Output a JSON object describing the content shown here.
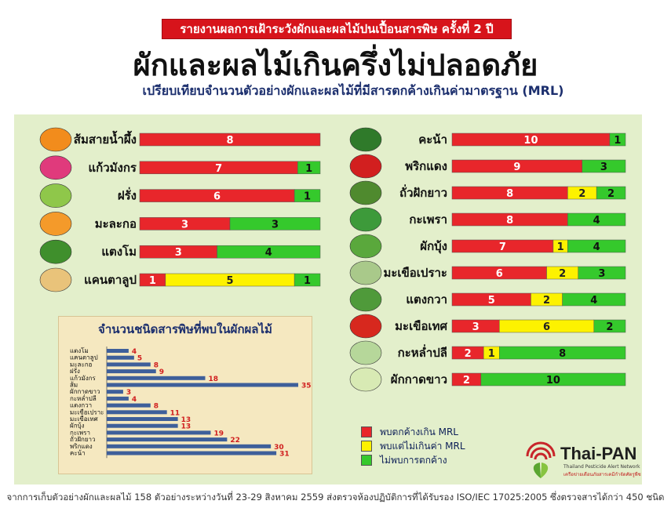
{
  "header": {
    "banner": "รายงานผลการเฝ้าระวังผักและผลไม้ปนเปื้อนสารพิษ ครั้งที่ 2 ปี 2559",
    "title": "ผักและผลไม้เกินครึ่งไม่ปลอดภัย",
    "subtitle": "เปรียบเทียบจำนวนตัวอย่างผักและผลไม้ที่มีสารตกค้างเกินค่ามาตรฐาน (MRL)"
  },
  "colors": {
    "red": "#e8262b",
    "yellow": "#fdf200",
    "green": "#35c92c"
  },
  "legend": {
    "items": [
      {
        "label": "พบตกค้างเกิน MRL",
        "color": "#e8262b"
      },
      {
        "label": "พบแต่ไม่เกินค่า MRL",
        "color": "#fdf200"
      },
      {
        "label": "ไม่พบการตกค้าง",
        "color": "#35c92c"
      }
    ]
  },
  "logo": {
    "name": "Thai-PAN",
    "tagline": "Thailand Pesticide Alert Network",
    "tagline_th": "เครือข่ายเตือนภัยสารเคมีกำจัดศัตรูพืช"
  },
  "footnote": "จากการเก็บตัวอย่างผักและผลไม้ 158 ตัวอย่างระหว่างวันที่ 23-29 สิงหาคม 2559 ส่งตรวจห้องปฏิบัติการที่ได้รับรอง ISO/IEC 17025:2005 ซึ่งตรวจสารได้กว่า 450 ชนิด",
  "chart_data": [
    {
      "type": "bar",
      "orientation": "horizontal",
      "stacked": true,
      "panel": "fruits",
      "categories": [
        "ส้มสายน้ำผึ้ง",
        "แก้วมังกร",
        "ฝรั่ง",
        "มะละกอ",
        "แตงโม",
        "แคนตาลูป"
      ],
      "icons": [
        "orange-icon",
        "dragon-fruit-icon",
        "guava-icon",
        "papaya-icon",
        "watermelon-icon",
        "cantaloupe-icon"
      ],
      "series": [
        {
          "name": "พบตกค้างเกิน MRL",
          "color": "#e8262b",
          "values": [
            8,
            7,
            6,
            3,
            3,
            1
          ]
        },
        {
          "name": "พบแต่ไม่เกินค่า MRL",
          "color": "#fdf200",
          "values": [
            0,
            0,
            0,
            0,
            0,
            5
          ]
        },
        {
          "name": "ไม่พบการตกค้าง",
          "color": "#35c92c",
          "values": [
            0,
            1,
            1,
            3,
            4,
            1
          ]
        }
      ]
    },
    {
      "type": "bar",
      "orientation": "horizontal",
      "stacked": true,
      "panel": "vegetables",
      "categories": [
        "คะน้า",
        "พริกแดง",
        "ถั่วฝักยาว",
        "กะเพรา",
        "ผักบุ้ง",
        "มะเขือเปราะ",
        "แตงกวา",
        "มะเขือเทศ",
        "กะหล่ำปลี",
        "ผักกาดขาว"
      ],
      "icons": [
        "kale-icon",
        "red-chili-icon",
        "long-bean-icon",
        "holy-basil-icon",
        "morning-glory-icon",
        "thai-eggplant-icon",
        "cucumber-icon",
        "tomato-icon",
        "cabbage-icon",
        "chinese-cabbage-icon"
      ],
      "series": [
        {
          "name": "พบตกค้างเกิน MRL",
          "color": "#e8262b",
          "values": [
            10,
            9,
            8,
            8,
            7,
            6,
            5,
            3,
            2,
            2
          ]
        },
        {
          "name": "พบแต่ไม่เกินค่า MRL",
          "color": "#fdf200",
          "values": [
            0,
            0,
            2,
            0,
            1,
            2,
            2,
            6,
            1,
            0
          ]
        },
        {
          "name": "ไม่พบการตกค้าง",
          "color": "#35c92c",
          "values": [
            1,
            3,
            2,
            4,
            4,
            3,
            4,
            2,
            8,
            10
          ]
        }
      ]
    },
    {
      "type": "bar",
      "orientation": "horizontal",
      "panel": "toxin-types",
      "title": "จำนวนชนิดสารพิษที่พบในผักผลไม้",
      "color": "#3e5f9a",
      "categories": [
        "แตงโม",
        "แคนตาลูป",
        "มะละกอ",
        "ฝรั่ง",
        "แก้วมังกร",
        "ส้ม",
        "ผักกาดขาว",
        "กะหล่ำปลี",
        "แตงกวา",
        "มะเขือเปราะ",
        "มะเขือเทศ",
        "ผักบุ้ง",
        "กะเพรา",
        "ถั่วฝักยาว",
        "พริกแดง",
        "คะน้า"
      ],
      "values": [
        4,
        5,
        8,
        9,
        18,
        35,
        3,
        4,
        8,
        11,
        13,
        13,
        19,
        22,
        30,
        31
      ],
      "xlim": [
        0,
        35
      ]
    }
  ]
}
